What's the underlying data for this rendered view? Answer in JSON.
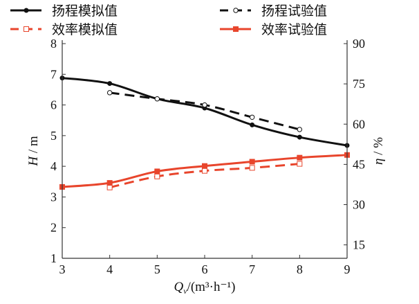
{
  "chart_data": {
    "type": "line",
    "title": "",
    "x": [
      3,
      4,
      5,
      6,
      7,
      8,
      9
    ],
    "xlim": [
      3,
      9
    ],
    "xticks": [
      3,
      4,
      5,
      6,
      7,
      8,
      9
    ],
    "xlabel_main": "Q",
    "xlabel_sub": "v",
    "xlabel_unit": "/(m³·h⁻¹)",
    "ylabel_left_var": "H",
    "ylabel_left_unit": " / m",
    "ylim_left": [
      1,
      8
    ],
    "yticks_left": [
      1,
      2,
      3,
      4,
      5,
      6,
      7,
      8
    ],
    "ylabel_right_var": "η",
    "ylabel_right_unit": " / %",
    "ylim_right": [
      10,
      90
    ],
    "yticks_right": [
      15,
      30,
      45,
      60,
      75,
      90
    ],
    "grid": false,
    "legend_position": "top",
    "series": [
      {
        "name": "扬程模拟值",
        "axis": "left",
        "color": "#111111",
        "dashed": false,
        "marker": "filled-circle",
        "x": [
          3,
          4,
          5,
          6,
          7,
          8,
          9
        ],
        "values": [
          6.88,
          6.7,
          6.2,
          5.9,
          5.35,
          4.95,
          4.68
        ]
      },
      {
        "name": "扬程试验值",
        "axis": "left",
        "color": "#111111",
        "dashed": true,
        "marker": "open-circle",
        "x": [
          4,
          5,
          6,
          7,
          8
        ],
        "values": [
          6.4,
          6.2,
          6.0,
          5.6,
          5.2
        ]
      },
      {
        "name": "效率模拟值",
        "axis": "right",
        "color": "#e8452c",
        "dashed": true,
        "marker": "open-square",
        "x": [
          4,
          5,
          6,
          7,
          8
        ],
        "values": [
          36.4,
          40.5,
          42.6,
          43.7,
          45.2
        ]
      },
      {
        "name": "效率试验值",
        "axis": "right",
        "color": "#e8452c",
        "dashed": false,
        "marker": "filled-square",
        "x": [
          3,
          4,
          5,
          6,
          7,
          8,
          9
        ],
        "values": [
          36.6,
          38.1,
          42.4,
          44.4,
          46.0,
          47.5,
          48.5
        ]
      }
    ]
  }
}
